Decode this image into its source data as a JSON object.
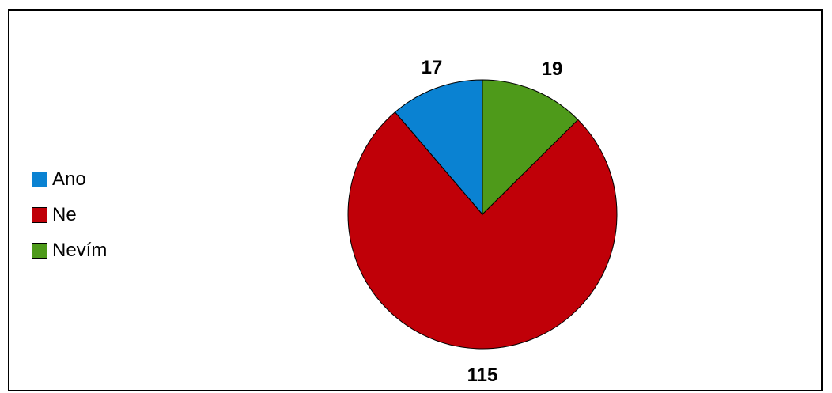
{
  "chart_data": {
    "type": "pie",
    "categories": [
      "Ano",
      "Ne",
      "Nevím"
    ],
    "values": [
      17,
      115,
      19
    ],
    "colors": [
      "#0a82d2",
      "#c00008",
      "#4e9a1a"
    ],
    "data_labels": [
      "17",
      "115",
      "19"
    ],
    "legend_position": "left",
    "start": "12 o'clock",
    "direction": "clockwise, order: Nevím, Ne, Ano"
  }
}
